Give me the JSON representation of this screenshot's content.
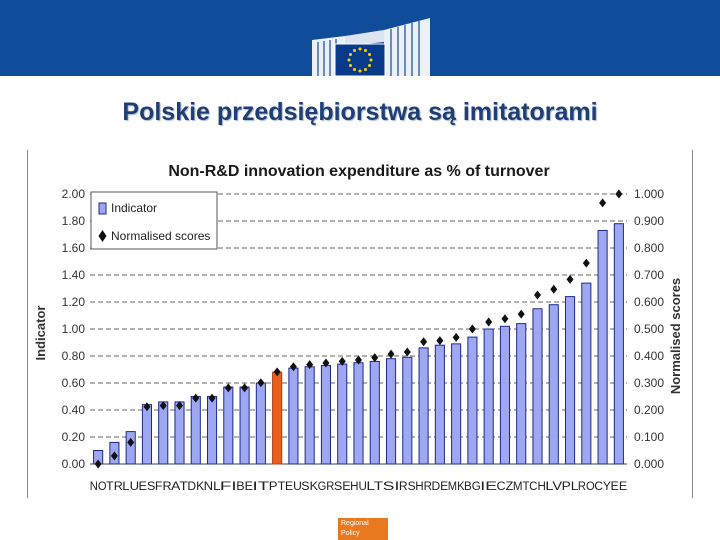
{
  "slide": {
    "title": "Polskie przedsiębiorstwa są imitatorami",
    "footer_line1": "Regional",
    "footer_line2": "Policy"
  },
  "colors": {
    "banner": "#0f4c9a",
    "bar": "#9ea8f2",
    "bar_highlight": "#e8601c",
    "marker": "#111111",
    "title_text": "#1f3e74"
  },
  "chart_data": {
    "type": "bar",
    "title": "Non-R&D innovation expenditure as % of turnover",
    "ylabel": "Indicator",
    "y2label": "Normalised scores",
    "ylim": [
      0,
      2.0
    ],
    "y2lim": [
      0,
      1.0
    ],
    "yticks": [
      "0.00",
      "0.20",
      "0.40",
      "0.60",
      "0.80",
      "1.00",
      "1.20",
      "1.40",
      "1.60",
      "1.80",
      "2.00"
    ],
    "y2ticks": [
      "0.000",
      "0.100",
      "0.200",
      "0.300",
      "0.400",
      "0.500",
      "0.600",
      "0.700",
      "0.800",
      "0.900",
      "1.000"
    ],
    "grid": "dashed horizontal",
    "legend_position": "top-left",
    "highlight_category": "PT",
    "categories": [
      "NO",
      "TR",
      "LU",
      "ES",
      "FR",
      "AT",
      "DK",
      "NL",
      "FI",
      "BE",
      "IT",
      "PT",
      "EU",
      "SK",
      "GR",
      "SE",
      "HU",
      "LT",
      "SI",
      "RS",
      "HR",
      "DE",
      "MK",
      "BG",
      "IE",
      "CZ",
      "MT",
      "CH",
      "LV",
      "PL",
      "RO",
      "CY",
      "EE"
    ],
    "series": [
      {
        "name": "Indicator",
        "type": "bar",
        "values": [
          0.1,
          0.16,
          0.24,
          0.44,
          0.46,
          0.46,
          0.5,
          0.5,
          0.57,
          0.57,
          0.6,
          0.68,
          0.71,
          0.72,
          0.73,
          0.74,
          0.75,
          0.76,
          0.78,
          0.79,
          0.86,
          0.88,
          0.89,
          0.94,
          1.0,
          1.02,
          1.04,
          1.15,
          1.18,
          1.24,
          1.34,
          1.73,
          1.78
        ]
      },
      {
        "name": "Normalised scores",
        "type": "scatter",
        "values": [
          0.0,
          0.03,
          0.08,
          0.212,
          0.216,
          0.216,
          0.244,
          0.244,
          0.282,
          0.282,
          0.301,
          0.341,
          0.36,
          0.368,
          0.374,
          0.38,
          0.385,
          0.394,
          0.407,
          0.415,
          0.453,
          0.457,
          0.469,
          0.5,
          0.526,
          0.538,
          0.555,
          0.626,
          0.647,
          0.684,
          0.744,
          0.967,
          1.0
        ]
      }
    ]
  }
}
